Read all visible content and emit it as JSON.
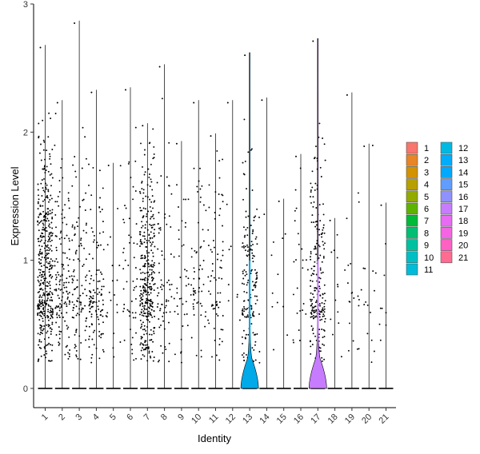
{
  "chart_data": {
    "type": "violin",
    "xlabel": "Identity",
    "ylabel": "Expression Level",
    "ylim": [
      -0.15,
      3.0
    ],
    "yticks": [
      0,
      1,
      2,
      3
    ],
    "categories": [
      "1",
      "2",
      "3",
      "4",
      "5",
      "6",
      "7",
      "8",
      "9",
      "10",
      "11",
      "12",
      "13",
      "14",
      "15",
      "16",
      "17",
      "18",
      "19",
      "20",
      "21"
    ],
    "colors": [
      "#F8766D",
      "#E88526",
      "#D39200",
      "#B79F00",
      "#93AA00",
      "#5EB300",
      "#00BA38",
      "#00BF74",
      "#00C19F",
      "#00BFC4",
      "#00B9E3",
      "#00ADFA",
      "#619CFF",
      "#AE87FF",
      "#DB72FB",
      "#F564E3",
      "#FF61C3",
      "#FF6C91",
      "#F8766D",
      "#F564E3",
      "#FF6C91"
    ],
    "max_values": [
      2.68,
      2.25,
      2.87,
      2.33,
      1.76,
      2.35,
      2.07,
      2.53,
      1.93,
      2.25,
      1.99,
      2.25,
      2.62,
      2.27,
      1.48,
      1.83,
      2.73,
      1.33,
      2.31,
      1.91,
      1.45
    ],
    "point_density": [
      420,
      140,
      110,
      120,
      20,
      55,
      340,
      70,
      40,
      60,
      70,
      8,
      170,
      10,
      6,
      25,
      220,
      12,
      20,
      15,
      8
    ],
    "point_spread": [
      1.1,
      0.9,
      0.9,
      0.55,
      0.8,
      0.8,
      0.9,
      0.9,
      0.8,
      0.8,
      0.9,
      0.8,
      0.9,
      0.8,
      0.8,
      0.8,
      0.9,
      0.8,
      0.9,
      0.8,
      0.8
    ],
    "visible_violins": {
      "13": "#00A9E8",
      "17": "#C77CFF"
    },
    "legend": {
      "col1": [
        "1",
        "2",
        "3",
        "4",
        "5",
        "6",
        "7",
        "8",
        "9",
        "10",
        "11"
      ],
      "col2": [
        "12",
        "13",
        "14",
        "15",
        "16",
        "17",
        "18",
        "19",
        "20",
        "21"
      ],
      "col1_colors": [
        "#F8766D",
        "#E88526",
        "#D39200",
        "#B79F00",
        "#93AA00",
        "#5EB300",
        "#00BA38",
        "#00BF74",
        "#00C19F",
        "#00BFC4",
        "#00BCD8"
      ],
      "col2_colors": [
        "#00B9E3",
        "#00ADFA",
        "#00A9FF",
        "#619CFF",
        "#8F91FF",
        "#C77CFF",
        "#E76BF3",
        "#F564E3",
        "#FF61C3",
        "#FF6C91"
      ]
    }
  }
}
